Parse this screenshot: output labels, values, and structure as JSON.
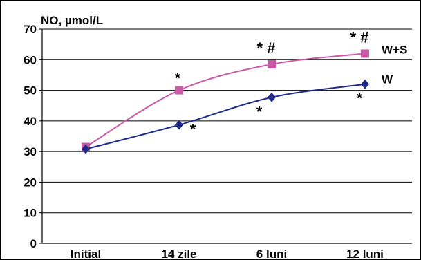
{
  "chart_data": {
    "type": "line",
    "ylabel": "NO, µmol/L",
    "categories": [
      "Initial",
      "14 zile",
      "6 luni",
      "12 luni"
    ],
    "ylim": [
      0,
      70
    ],
    "yticks": [
      0,
      10,
      20,
      30,
      40,
      50,
      60,
      70
    ],
    "grid": true,
    "series": [
      {
        "name": "W+S",
        "values": [
          31.5,
          50,
          58.5,
          62
        ],
        "color": "#c95aa8",
        "marker": "square"
      },
      {
        "name": "W",
        "values": [
          30.8,
          38.7,
          47.7,
          52
        ],
        "color": "#1f2a8a",
        "marker": "diamond"
      }
    ],
    "annotations": [
      {
        "text": "*",
        "category": 1,
        "series": "W+S"
      },
      {
        "text": "*",
        "category": 1,
        "series": "W"
      },
      {
        "text": "* #",
        "category": 2,
        "series": "W+S"
      },
      {
        "text": "*",
        "category": 2,
        "series": "W"
      },
      {
        "text": "* #",
        "category": 3,
        "series": "W+S"
      },
      {
        "text": "*",
        "category": 3,
        "series": "W"
      }
    ]
  }
}
